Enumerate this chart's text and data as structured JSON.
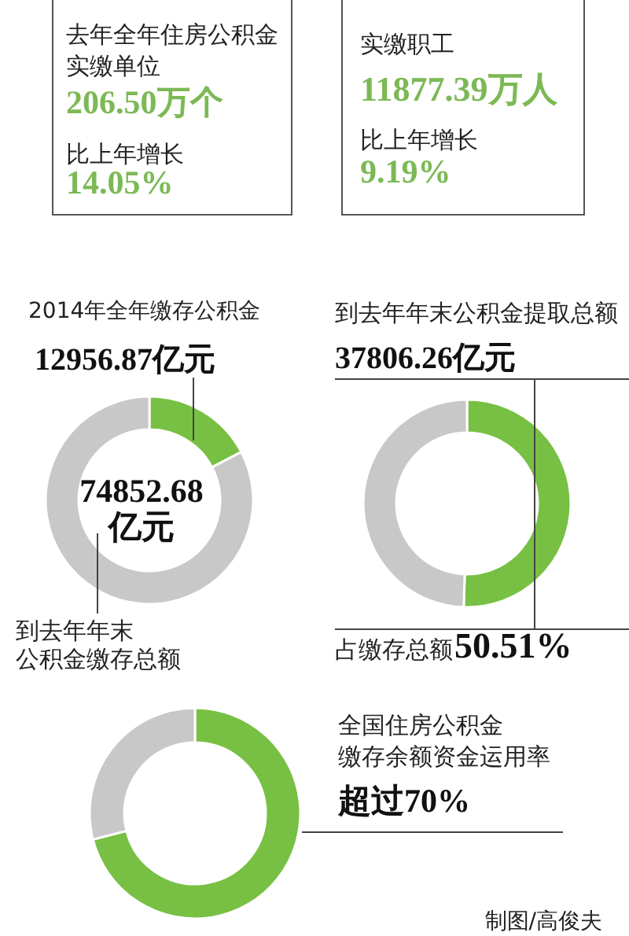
{
  "chart_data": [
    {
      "type": "other",
      "title": "去年全年住房公积金实缴单位",
      "annotations": [
        "206.50万个",
        "比上年增长",
        "14.05%"
      ]
    },
    {
      "type": "other",
      "title": "实缴职工",
      "annotations": [
        "11877.39万人",
        "比上年增长",
        "9.19%"
      ]
    },
    {
      "type": "donut",
      "title": "2014年全年缴存公积金",
      "categories": [
        null,
        null
      ],
      "values": [
        17.31,
        82.69
      ],
      "colors": [
        "#77c043",
        "#c8c8c8"
      ],
      "annotations": [
        "12956.87亿元",
        "74852.68亿元",
        "到去年年末公积金缴存总额"
      ]
    },
    {
      "type": "donut",
      "title": "到去年年末公积金提取总额",
      "categories": [
        null,
        null
      ],
      "values": [
        50.51,
        49.49
      ],
      "colors": [
        "#77c043",
        "#c8c8c8"
      ],
      "annotations": [
        "37806.26亿元",
        "占缴存总额",
        "50.51%"
      ]
    },
    {
      "type": "donut",
      "title": "全国住房公积金缴存余额资金运用率",
      "categories": [
        null,
        null
      ],
      "values": [
        71,
        29
      ],
      "colors": [
        "#77c043",
        "#c8c8c8"
      ],
      "annotations": [
        "超过70%",
        "制图/高俊夫"
      ]
    }
  ]
}
